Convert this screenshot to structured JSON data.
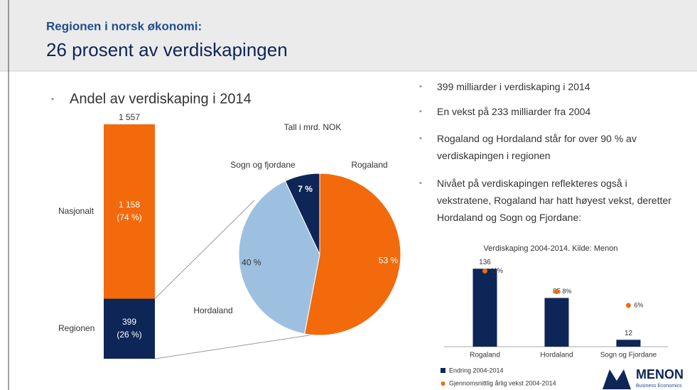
{
  "slide": {
    "kicker": "Regionen i norsk økonomi:",
    "title": "26 prosent av verdiskapingen",
    "bullets": [
      "399 milliarder i verdiskaping i 2014",
      "En vekst på 233 milliarder fra 2004",
      "Rogaland og Hordaland står for over 90 % av verdiskapingen i regionen",
      "Nivået på verdiskapingen reflekteres også i vekstratene, Rogaland har hatt høyest vekst, deretter Hordaland og Sogn og Fjordane:"
    ],
    "logo": "MENON",
    "logo_sub": "Business Economics"
  },
  "chart_data": [
    {
      "type": "stacked_bar",
      "title": "Andel av verdiskaping i 2014",
      "total": 1557,
      "total_label": "1 557",
      "series": [
        {
          "name": "Regionen",
          "color": "#0d2657",
          "values": [
            399
          ],
          "share": 26,
          "share_label": "(26 %)"
        },
        {
          "name": "Nasjonalt",
          "color": "#f26a0c",
          "values": [
            1158
          ],
          "value_labels": [
            "1 158"
          ],
          "share": 74,
          "share_label": "(74 %)"
        }
      ]
    },
    {
      "type": "pie",
      "annotation": "Tall i mrd. NOK",
      "categories": [
        "Rogaland",
        "Hordaland",
        "Sogn og fjordane"
      ],
      "values": [
        53,
        40,
        7
      ],
      "value_labels": [
        "53 %",
        "40 %",
        "7 %"
      ],
      "colors": [
        "#f26a0c",
        "#9dc0e0",
        "#0d2657"
      ]
    },
    {
      "type": "bar_dot",
      "title": "Verdiskaping 2004-2014. Kilde: Menon",
      "categories": [
        "Rogaland",
        "Hordaland",
        "Sogn og Fjordane"
      ],
      "ylim": [
        0,
        150
      ],
      "y2lim": [
        0,
        12.5
      ],
      "series": [
        {
          "name": "Endring 2004-2014",
          "color": "#0d2657",
          "values": [
            136,
            85,
            12
          ]
        },
        {
          "name": "Gjennomsnittlig årlig vekst 2004-2014",
          "color": "#f26a0c",
          "axis": "y2",
          "values": [
            11,
            8,
            6
          ],
          "value_labels": [
            "11%",
            "8%",
            "6%"
          ]
        }
      ]
    }
  ]
}
